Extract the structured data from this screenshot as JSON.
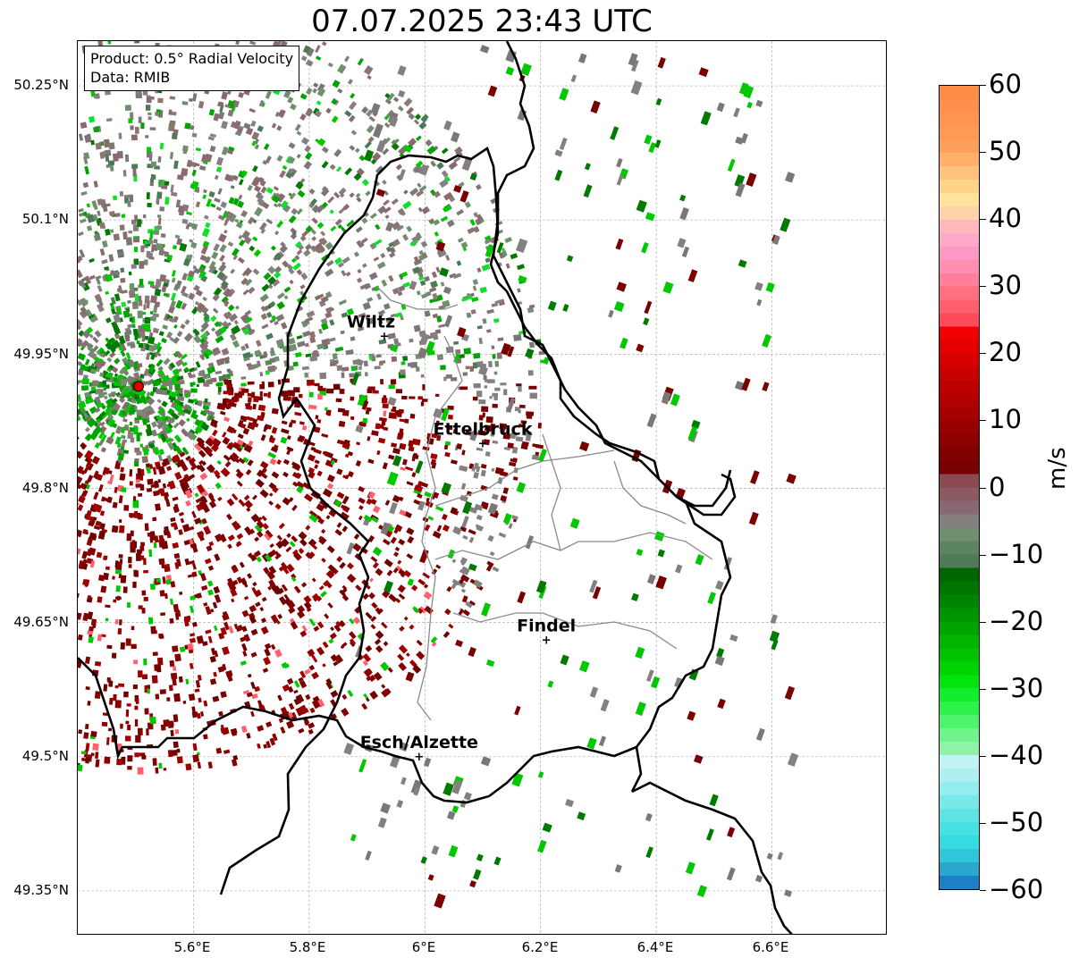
{
  "title": "07.07.2025 23:43 UTC",
  "info_box": {
    "line1": "Product: 0.5° Radial Velocity",
    "line2": "Data: RMIB"
  },
  "map": {
    "lon_range": [
      5.4,
      6.8
    ],
    "lat_range": [
      49.3,
      50.3
    ],
    "y_ticks": [
      "50.25°N",
      "50.1°N",
      "49.95°N",
      "49.8°N",
      "49.65°N",
      "49.5°N",
      "49.35°N"
    ],
    "x_ticks": [
      "5.6°E",
      "5.8°E",
      "6°E",
      "6.2°E",
      "6.4°E",
      "6.6°E"
    ],
    "gridlines": true,
    "radar_site": {
      "lon": 5.505,
      "lat": 49.914,
      "color": "#e00000"
    },
    "cities": [
      {
        "name": "Wiltz",
        "lon": 5.93,
        "lat": 49.97
      },
      {
        "name": "Ettelbruck",
        "lon": 6.1,
        "lat": 49.85
      },
      {
        "name": "Findel",
        "lon": 6.21,
        "lat": 49.63
      },
      {
        "name": "Esch/Alzette",
        "lon": 5.99,
        "lat": 49.5
      }
    ]
  },
  "colorbar": {
    "label": "m/s",
    "min": -60,
    "max": 60,
    "ticks": [
      "60",
      "50",
      "40",
      "30",
      "20",
      "10",
      "0",
      "−10",
      "−20",
      "−30",
      "−40",
      "−50",
      "−60"
    ],
    "tick_values": [
      60,
      50,
      40,
      30,
      20,
      10,
      0,
      -10,
      -20,
      -30,
      -40,
      -50,
      -60
    ],
    "colors": [
      "#1f7fc4",
      "#2aa7cf",
      "#2ec6d8",
      "#34dcdf",
      "#48e0e2",
      "#5fe4e6",
      "#78e8ea",
      "#93ecee",
      "#aef0f1",
      "#c2f3f3",
      "#8ef3a9",
      "#6ef48a",
      "#4ef46c",
      "#2ef24c",
      "#10ee2c",
      "#00e410",
      "#00d400",
      "#00c400",
      "#00b400",
      "#00a400",
      "#009400",
      "#008400",
      "#007400",
      "#006600",
      "#4e7a55",
      "#5d8461",
      "#6f8f6f",
      "#857f7f",
      "#886971",
      "#8a5961",
      "#8b4a4f",
      "#780000",
      "#800000",
      "#8c0000",
      "#980000",
      "#a40000",
      "#b00000",
      "#bc0000",
      "#c80000",
      "#d60000",
      "#e40000",
      "#f20000",
      "#ff4a5a",
      "#ff6070",
      "#ff7082",
      "#ff8098",
      "#ff8fb0",
      "#ff98c4",
      "#ffa8c8",
      "#ffb8bc",
      "#ffd3a8",
      "#ffe39a",
      "#ffd38a",
      "#ffc27a",
      "#ffb16a",
      "#ffa05a",
      "#ff9a55",
      "#ff9550",
      "#ff904c",
      "#ff8c48"
    ]
  }
}
